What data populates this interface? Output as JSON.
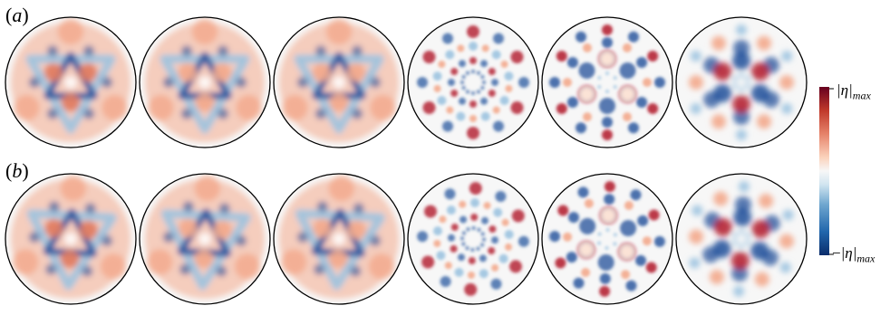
{
  "panels": {
    "row_a": {
      "label_open": "(",
      "label_letter": "a",
      "label_close": ")",
      "count": 6
    },
    "row_b": {
      "label_open": "(",
      "label_letter": "b",
      "label_close": ")",
      "count": 6
    }
  },
  "colorbar": {
    "max_prefix": "",
    "max_symbol": "|η|",
    "max_sub": "max",
    "min_prefix": "−",
    "min_symbol": "|η|",
    "min_sub": "max",
    "colors": [
      "#0b2d6b",
      "#2166ac",
      "#6ea6cf",
      "#d1e5f0",
      "#f7f7f7",
      "#fbd3bd",
      "#e6836a",
      "#c0392b",
      "#67001f"
    ]
  },
  "colors": {
    "blue_deep": "#1f4f9a",
    "blue_light": "#9cc3e0",
    "red_deep": "#b2182b",
    "red_light": "#f3a98c",
    "background": "#f7f7f7"
  }
}
